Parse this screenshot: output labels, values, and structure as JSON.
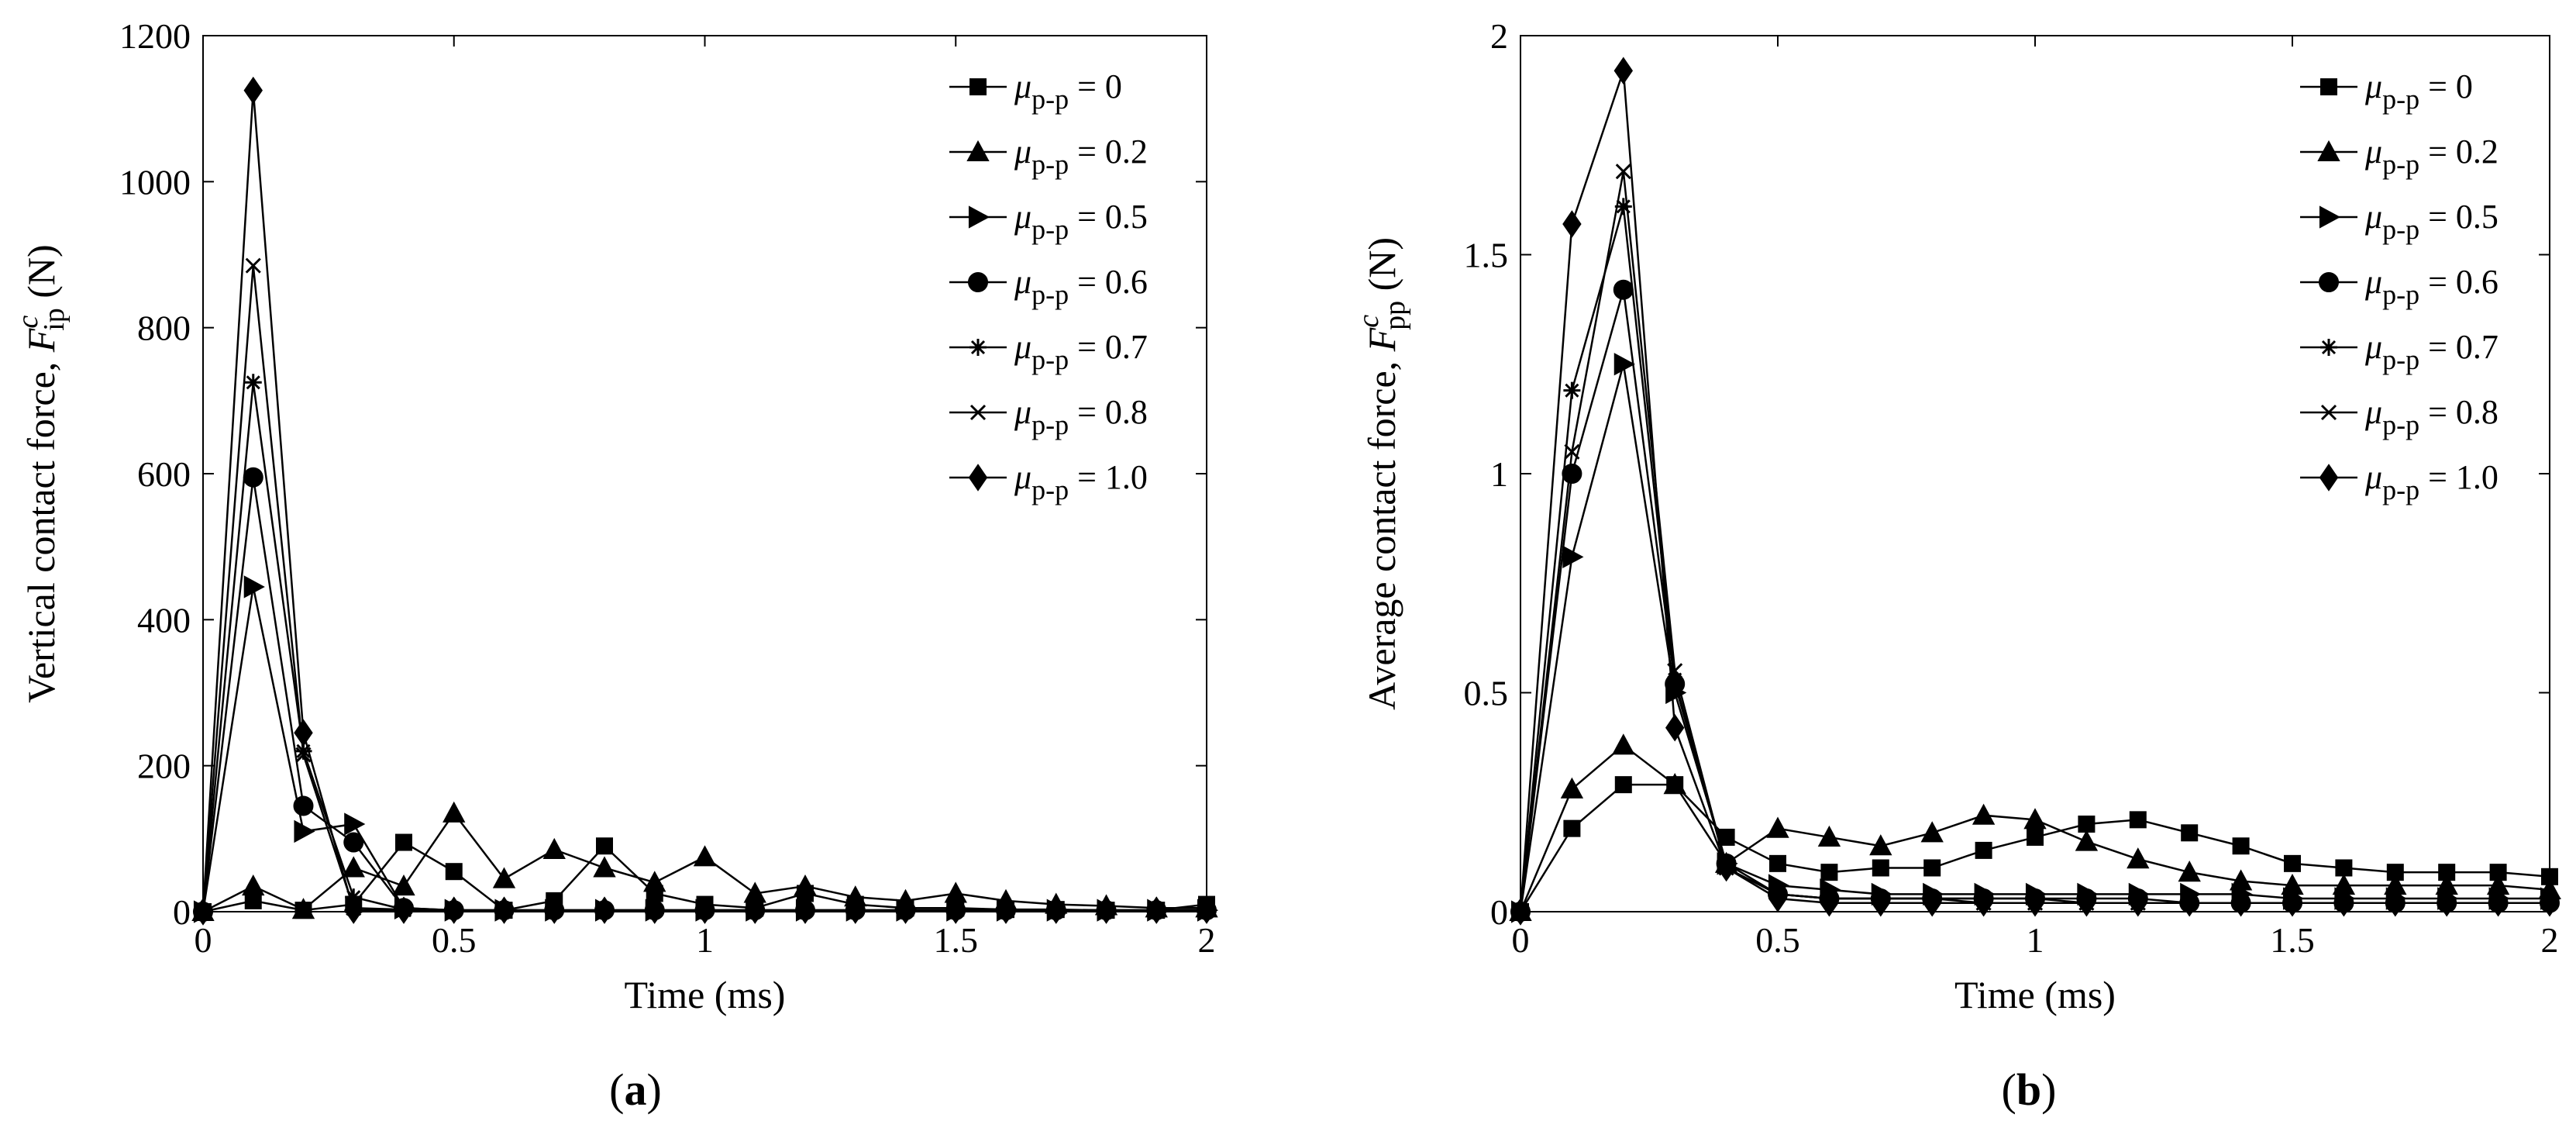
{
  "chart_data": [
    {
      "type": "line",
      "panel_label": "a",
      "title": "",
      "xlabel": "Time (ms)",
      "ylabel_prefix": "Vertical contact force, ",
      "ylabel_symbol": "F",
      "ylabel_superscript": "c",
      "ylabel_subscript": "ip",
      "ylabel_unit": " (N)",
      "xlim": [
        0,
        2
      ],
      "ylim": [
        0,
        1200
      ],
      "xticks": [
        0,
        0.5,
        1,
        1.5,
        2
      ],
      "xtick_labels": [
        "0",
        "0.5",
        "1",
        "1.5",
        "2"
      ],
      "yticks": [
        0,
        200,
        400,
        600,
        800,
        1000,
        1200
      ],
      "ytick_labels": [
        "0",
        "200",
        "400",
        "600",
        "800",
        "1000",
        "1200"
      ],
      "grid": false,
      "legend_position": "top-right",
      "x": [
        0,
        0.1,
        0.2,
        0.3,
        0.4,
        0.5,
        0.6,
        0.7,
        0.8,
        0.9,
        1.0,
        1.1,
        1.2,
        1.3,
        1.4,
        1.5,
        1.6,
        1.7,
        1.8,
        1.9,
        2.0
      ],
      "series": [
        {
          "name": "μp-p = 0",
          "legend_symbol": "μ",
          "legend_subscript": "p-p",
          "legend_value": " = 0",
          "marker": "square",
          "values": [
            0,
            15,
            2,
            10,
            95,
            55,
            2,
            15,
            90,
            25,
            10,
            5,
            25,
            10,
            5,
            5,
            3,
            3,
            2,
            2,
            10
          ]
        },
        {
          "name": "μp-p = 0.2",
          "legend_symbol": "μ",
          "legend_subscript": "p-p",
          "legend_value": " = 0.2",
          "marker": "triangle",
          "values": [
            0,
            35,
            3,
            60,
            35,
            135,
            45,
            85,
            60,
            40,
            75,
            25,
            35,
            20,
            15,
            25,
            15,
            10,
            8,
            5,
            5
          ]
        },
        {
          "name": "μp-p = 0.5",
          "legend_symbol": "μ",
          "legend_subscript": "p-p",
          "legend_value": " = 0.5",
          "marker": "triangle-right",
          "values": [
            0,
            445,
            110,
            120,
            5,
            2,
            2,
            2,
            2,
            2,
            2,
            2,
            2,
            2,
            2,
            2,
            2,
            2,
            2,
            2,
            2
          ]
        },
        {
          "name": "μp-p = 0.6",
          "legend_symbol": "μ",
          "legend_subscript": "p-p",
          "legend_value": " = 0.6",
          "marker": "circle",
          "values": [
            0,
            595,
            145,
            95,
            5,
            2,
            2,
            2,
            2,
            2,
            2,
            2,
            2,
            2,
            2,
            2,
            2,
            2,
            2,
            2,
            2
          ]
        },
        {
          "name": "μp-p = 0.7",
          "legend_symbol": "μ",
          "legend_subscript": "p-p",
          "legend_value": " = 0.7",
          "marker": "asterisk",
          "values": [
            0,
            725,
            220,
            20,
            3,
            2,
            2,
            2,
            2,
            2,
            2,
            2,
            2,
            2,
            2,
            2,
            2,
            2,
            2,
            2,
            2
          ]
        },
        {
          "name": "μp-p = 0.8",
          "legend_symbol": "μ",
          "legend_subscript": "p-p",
          "legend_value": " = 0.8",
          "marker": "cross",
          "values": [
            0,
            885,
            215,
            5,
            3,
            2,
            2,
            2,
            2,
            2,
            2,
            2,
            2,
            2,
            2,
            2,
            2,
            2,
            2,
            2,
            2
          ]
        },
        {
          "name": "μp-p = 1.0",
          "legend_symbol": "μ",
          "legend_subscript": "p-p",
          "legend_value": " = 1.0",
          "marker": "diamond",
          "values": [
            0,
            1125,
            245,
            2,
            2,
            2,
            2,
            2,
            2,
            2,
            2,
            2,
            2,
            2,
            2,
            2,
            2,
            2,
            2,
            2,
            2
          ]
        }
      ]
    },
    {
      "type": "line",
      "panel_label": "b",
      "title": "",
      "xlabel": "Time (ms)",
      "ylabel_prefix": "Average contact force, ",
      "ylabel_symbol": "F",
      "ylabel_superscript": "c",
      "ylabel_subscript": "pp",
      "ylabel_unit": " (N)",
      "xlim": [
        0,
        2
      ],
      "ylim": [
        0,
        2
      ],
      "xticks": [
        0,
        0.5,
        1,
        1.5,
        2
      ],
      "xtick_labels": [
        "0",
        "0.5",
        "1",
        "1.5",
        "2"
      ],
      "yticks": [
        0,
        0.5,
        1,
        1.5,
        2
      ],
      "ytick_labels": [
        "0",
        "0.5",
        "1",
        "1.5",
        "2"
      ],
      "grid": false,
      "legend_position": "top-right",
      "x": [
        0,
        0.1,
        0.2,
        0.3,
        0.4,
        0.5,
        0.6,
        0.7,
        0.8,
        0.9,
        1.0,
        1.1,
        1.2,
        1.3,
        1.4,
        1.5,
        1.6,
        1.7,
        1.8,
        1.9,
        2.0
      ],
      "series": [
        {
          "name": "μp-p = 0",
          "legend_symbol": "μ",
          "legend_subscript": "p-p",
          "legend_value": " = 0",
          "marker": "square",
          "values": [
            0,
            0.19,
            0.29,
            0.29,
            0.17,
            0.11,
            0.09,
            0.1,
            0.1,
            0.14,
            0.17,
            0.2,
            0.21,
            0.18,
            0.15,
            0.11,
            0.1,
            0.09,
            0.09,
            0.09,
            0.08
          ]
        },
        {
          "name": "μp-p = 0.2",
          "legend_symbol": "μ",
          "legend_subscript": "p-p",
          "legend_value": " = 0.2",
          "marker": "triangle",
          "values": [
            0,
            0.28,
            0.38,
            0.29,
            0.11,
            0.19,
            0.17,
            0.15,
            0.18,
            0.22,
            0.21,
            0.16,
            0.12,
            0.09,
            0.07,
            0.06,
            0.06,
            0.06,
            0.06,
            0.06,
            0.05
          ]
        },
        {
          "name": "μp-p = 0.5",
          "legend_symbol": "μ",
          "legend_subscript": "p-p",
          "legend_value": " = 0.5",
          "marker": "triangle-right",
          "values": [
            0,
            0.81,
            1.25,
            0.5,
            0.11,
            0.06,
            0.05,
            0.04,
            0.04,
            0.04,
            0.04,
            0.04,
            0.04,
            0.04,
            0.04,
            0.03,
            0.03,
            0.03,
            0.03,
            0.03,
            0.03
          ]
        },
        {
          "name": "μp-p = 0.6",
          "legend_symbol": "μ",
          "legend_subscript": "p-p",
          "legend_value": " = 0.6",
          "marker": "circle",
          "values": [
            0,
            1.0,
            1.42,
            0.52,
            0.11,
            0.04,
            0.03,
            0.03,
            0.03,
            0.03,
            0.03,
            0.03,
            0.03,
            0.02,
            0.02,
            0.02,
            0.02,
            0.02,
            0.02,
            0.02,
            0.02
          ]
        },
        {
          "name": "μp-p = 0.7",
          "legend_symbol": "μ",
          "legend_subscript": "p-p",
          "legend_value": " = 0.7",
          "marker": "asterisk",
          "values": [
            0,
            1.19,
            1.61,
            0.53,
            0.1,
            0.04,
            0.03,
            0.03,
            0.03,
            0.03,
            0.03,
            0.02,
            0.02,
            0.02,
            0.02,
            0.02,
            0.02,
            0.02,
            0.02,
            0.02,
            0.02
          ]
        },
        {
          "name": "μp-p = 0.8",
          "legend_symbol": "μ",
          "legend_subscript": "p-p",
          "legend_value": " = 0.8",
          "marker": "cross",
          "values": [
            0,
            1.05,
            1.69,
            0.55,
            0.1,
            0.04,
            0.03,
            0.03,
            0.03,
            0.02,
            0.02,
            0.02,
            0.02,
            0.02,
            0.02,
            0.02,
            0.02,
            0.02,
            0.02,
            0.02,
            0.02
          ]
        },
        {
          "name": "μp-p = 1.0",
          "legend_symbol": "μ",
          "legend_subscript": "p-p",
          "legend_value": " = 1.0",
          "marker": "diamond",
          "values": [
            0,
            1.57,
            1.92,
            0.42,
            0.1,
            0.03,
            0.02,
            0.02,
            0.02,
            0.02,
            0.02,
            0.02,
            0.02,
            0.02,
            0.02,
            0.02,
            0.02,
            0.02,
            0.02,
            0.02,
            0.02
          ]
        }
      ]
    }
  ]
}
